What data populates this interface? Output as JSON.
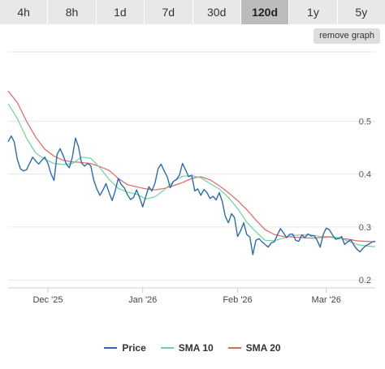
{
  "tabs": [
    {
      "label": "4h"
    },
    {
      "label": "8h"
    },
    {
      "label": "1d"
    },
    {
      "label": "7d"
    },
    {
      "label": "30d"
    },
    {
      "label": "120d",
      "active": true
    },
    {
      "label": "1y"
    },
    {
      "label": "5y"
    }
  ],
  "remove_graph_label": "remove graph",
  "chart_data": {
    "type": "line",
    "title": "",
    "xlabel": "",
    "ylabel": "",
    "x_tick_labels": [
      "Dec '25",
      "Jan '26",
      "Feb '26",
      "Mar '26"
    ],
    "y_ticks": [
      0.2,
      0.3,
      0.4,
      0.5
    ],
    "y_tick_labels": [
      "0.2",
      "0.3",
      "0.4",
      "0.5"
    ],
    "ylim": [
      0.185,
      0.64
    ],
    "x_index_range": [
      0,
      120
    ],
    "x_tick_positions": [
      13,
      44,
      75,
      104
    ],
    "grid": true,
    "legend_position": "bottom",
    "series": [
      {
        "name": "Price",
        "color": "#2b6cb0",
        "x": [
          0,
          1,
          2,
          3,
          4,
          5,
          6,
          7,
          8,
          9,
          10,
          11,
          12,
          13,
          14,
          15,
          16,
          17,
          18,
          19,
          20,
          21,
          22,
          23,
          24,
          25,
          26,
          27,
          28,
          29,
          30,
          31,
          32,
          33,
          34,
          35,
          36,
          37,
          38,
          39,
          40,
          41,
          42,
          43,
          44,
          45,
          46,
          47,
          48,
          49,
          50,
          51,
          52,
          53,
          54,
          55,
          56,
          57,
          58,
          59,
          60,
          61,
          62,
          63,
          64,
          65,
          66,
          67,
          68,
          69,
          70,
          71,
          72,
          73,
          74,
          75,
          76,
          77,
          78,
          79,
          80,
          81,
          82,
          83,
          84,
          85,
          86,
          87,
          88,
          89,
          90,
          91,
          92,
          93,
          94,
          95,
          96,
          97,
          98,
          99,
          100,
          101,
          102,
          103,
          104,
          105,
          106,
          107,
          108,
          109,
          110,
          111,
          112,
          113,
          114,
          115,
          116,
          117,
          118,
          119,
          120
        ],
        "values": [
          0.461,
          0.472,
          0.461,
          0.428,
          0.41,
          0.406,
          0.408,
          0.42,
          0.432,
          0.425,
          0.419,
          0.426,
          0.432,
          0.42,
          0.401,
          0.388,
          0.437,
          0.448,
          0.435,
          0.419,
          0.412,
          0.432,
          0.468,
          0.452,
          0.421,
          0.415,
          0.42,
          0.416,
          0.388,
          0.372,
          0.36,
          0.37,
          0.382,
          0.365,
          0.35,
          0.368,
          0.392,
          0.38,
          0.374,
          0.361,
          0.352,
          0.356,
          0.37,
          0.355,
          0.338,
          0.358,
          0.376,
          0.368,
          0.383,
          0.41,
          0.419,
          0.406,
          0.395,
          0.374,
          0.386,
          0.39,
          0.398,
          0.42,
          0.408,
          0.395,
          0.398,
          0.368,
          0.372,
          0.36,
          0.371,
          0.365,
          0.354,
          0.358,
          0.351,
          0.365,
          0.348,
          0.32,
          0.308,
          0.325,
          0.318,
          0.282,
          0.293,
          0.308,
          0.286,
          0.281,
          0.248,
          0.275,
          0.278,
          0.272,
          0.267,
          0.262,
          0.27,
          0.272,
          0.285,
          0.297,
          0.289,
          0.28,
          0.286,
          0.287,
          0.275,
          0.273,
          0.285,
          0.28,
          0.287,
          0.283,
          0.284,
          0.275,
          0.262,
          0.286,
          0.298,
          0.295,
          0.285,
          0.277,
          0.278,
          0.282,
          0.267,
          0.272,
          0.276,
          0.266,
          0.258,
          0.253,
          0.26,
          0.265,
          0.268,
          0.272,
          0.273
        ]
      },
      {
        "name": "SMA 10",
        "color": "#6dd39f",
        "x": [
          0,
          3,
          6,
          9,
          12,
          15,
          18,
          21,
          24,
          27,
          30,
          33,
          36,
          39,
          42,
          45,
          48,
          51,
          54,
          57,
          60,
          63,
          66,
          69,
          72,
          75,
          78,
          81,
          84,
          87,
          90,
          93,
          96,
          99,
          102,
          105,
          108,
          111,
          114,
          117,
          120
        ],
        "values": [
          0.533,
          0.505,
          0.468,
          0.44,
          0.428,
          0.42,
          0.418,
          0.42,
          0.432,
          0.43,
          0.412,
          0.39,
          0.373,
          0.366,
          0.362,
          0.353,
          0.357,
          0.37,
          0.386,
          0.396,
          0.397,
          0.393,
          0.382,
          0.372,
          0.356,
          0.335,
          0.309,
          0.291,
          0.275,
          0.274,
          0.279,
          0.284,
          0.285,
          0.285,
          0.282,
          0.282,
          0.28,
          0.274,
          0.267,
          0.264,
          0.263
        ]
      },
      {
        "name": "SMA 20",
        "color": "#e4655f",
        "x": [
          0,
          3,
          6,
          9,
          12,
          15,
          18,
          21,
          24,
          27,
          30,
          33,
          36,
          39,
          42,
          45,
          48,
          51,
          54,
          57,
          60,
          63,
          66,
          69,
          72,
          75,
          78,
          81,
          84,
          87,
          90,
          93,
          96,
          99,
          102,
          105,
          108,
          111,
          114,
          117,
          120
        ],
        "values": [
          0.557,
          0.535,
          0.5,
          0.47,
          0.447,
          0.434,
          0.426,
          0.423,
          0.422,
          0.42,
          0.414,
          0.407,
          0.392,
          0.38,
          0.376,
          0.372,
          0.37,
          0.373,
          0.378,
          0.384,
          0.392,
          0.395,
          0.389,
          0.378,
          0.365,
          0.35,
          0.333,
          0.313,
          0.295,
          0.286,
          0.282,
          0.281,
          0.28,
          0.279,
          0.28,
          0.281,
          0.279,
          0.277,
          0.274,
          0.273,
          0.272
        ]
      }
    ]
  }
}
